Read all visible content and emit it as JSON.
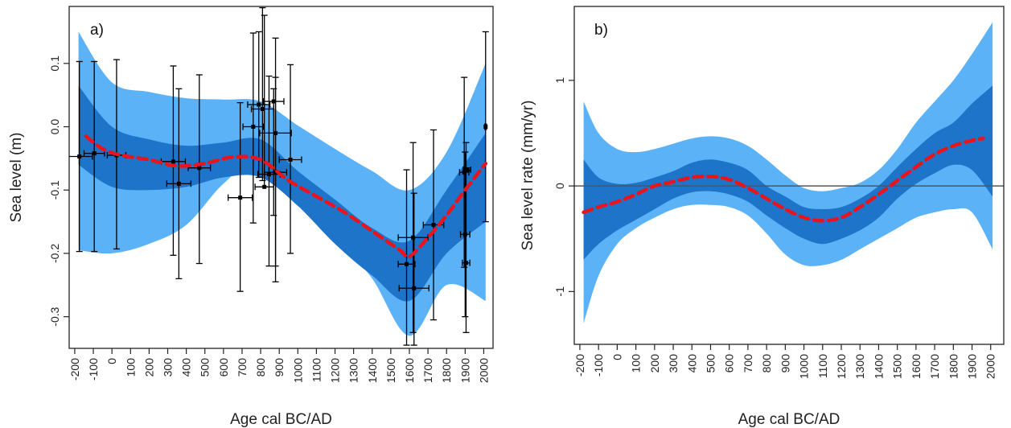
{
  "colors": {
    "outer_band": "#5bb2f7",
    "inner_band": "#1d74c9",
    "mean_line": "#e8141e",
    "data_points": "#000000",
    "zero_line": "#555555"
  },
  "chart_data": [
    {
      "type": "line",
      "panel_label": "a)",
      "xlabel": "Age cal BC/AD",
      "ylabel": "Sea level (m)",
      "xlim": [
        -230,
        2050
      ],
      "ylim": [
        -0.35,
        0.19
      ],
      "xticks": [
        -200,
        -100,
        0,
        100,
        200,
        300,
        400,
        500,
        600,
        700,
        800,
        900,
        1000,
        1100,
        1200,
        1300,
        1400,
        1500,
        1600,
        1700,
        1800,
        1900,
        2000
      ],
      "xtick_labels": [
        "-200",
        "-100",
        "0",
        "100",
        "200",
        "300",
        "400",
        "500",
        "600",
        "700",
        "800",
        "900",
        "1000",
        "1100",
        "1200",
        "1300",
        "1400",
        "1500",
        "1600",
        "1700",
        "1800",
        "1900",
        "2000"
      ],
      "yticks": [
        -0.3,
        -0.2,
        -0.1,
        0.0,
        0.1
      ],
      "ytick_labels": [
        "-0.3",
        "-0.2",
        "-0.1",
        "0.0",
        "0.1"
      ],
      "grid": false,
      "band_x": [
        -180,
        0,
        200,
        400,
        600,
        800,
        1000,
        1200,
        1400,
        1600,
        1800,
        2010
      ],
      "outer_upper": [
        0.15,
        0.07,
        0.055,
        0.045,
        0.043,
        0.04,
        0.002,
        -0.035,
        -0.07,
        -0.1,
        -0.04,
        0.1
      ],
      "outer_lower": [
        -0.195,
        -0.2,
        -0.185,
        -0.155,
        -0.09,
        -0.05,
        -0.105,
        -0.17,
        -0.24,
        -0.33,
        -0.25,
        -0.275
      ],
      "inner_upper": [
        0.065,
        0.0,
        -0.02,
        -0.03,
        -0.025,
        -0.02,
        -0.07,
        -0.115,
        -0.16,
        -0.18,
        -0.1,
        -0.01
      ],
      "inner_lower": [
        -0.06,
        -0.095,
        -0.1,
        -0.095,
        -0.08,
        -0.08,
        -0.125,
        -0.185,
        -0.235,
        -0.275,
        -0.2,
        -0.15
      ],
      "mean_x": [
        -140,
        -50,
        50,
        200,
        350,
        500,
        650,
        800,
        950,
        1100,
        1250,
        1400,
        1550,
        1600,
        1700,
        1800,
        1900,
        2010
      ],
      "mean_y": [
        -0.015,
        -0.035,
        -0.045,
        -0.052,
        -0.062,
        -0.058,
        -0.048,
        -0.052,
        -0.085,
        -0.11,
        -0.135,
        -0.165,
        -0.195,
        -0.205,
        -0.175,
        -0.14,
        -0.1,
        -0.058
      ],
      "points": [
        {
          "x": -175,
          "y": -0.047,
          "xerr": 70,
          "y_low": -0.197,
          "y_high": 0.103
        },
        {
          "x": -95,
          "y": -0.042,
          "xerr": 55,
          "y_low": -0.197,
          "y_high": 0.103
        },
        {
          "x": 25,
          "y": -0.045,
          "xerr": 50,
          "y_low": -0.193,
          "y_high": 0.106
        },
        {
          "x": 330,
          "y": -0.055,
          "xerr": 65,
          "y_low": -0.203,
          "y_high": 0.096
        },
        {
          "x": 360,
          "y": -0.09,
          "xerr": 65,
          "y_low": -0.24,
          "y_high": 0.06
        },
        {
          "x": 470,
          "y": -0.065,
          "xerr": 60,
          "y_low": -0.216,
          "y_high": 0.082
        },
        {
          "x": 690,
          "y": -0.112,
          "xerr": 65,
          "y_low": -0.26,
          "y_high": 0.038
        },
        {
          "x": 760,
          "y": 0.0,
          "xerr": 55,
          "y_low": -0.152,
          "y_high": 0.148
        },
        {
          "x": 790,
          "y": 0.035,
          "xerr": 60,
          "y_low": -0.08,
          "y_high": 0.15
        },
        {
          "x": 810,
          "y": 0.028,
          "xerr": 60,
          "y_low": -0.085,
          "y_high": 0.188
        },
        {
          "x": 820,
          "y": -0.095,
          "xerr": 50,
          "y_low": -0.095,
          "y_high": 0.176
        },
        {
          "x": 845,
          "y": -0.075,
          "xerr": 60,
          "y_low": -0.22,
          "y_high": 0.08
        },
        {
          "x": 870,
          "y": 0.04,
          "xerr": 55,
          "y_low": -0.14,
          "y_high": 0.06
        },
        {
          "x": 880,
          "y": -0.01,
          "xerr": 85,
          "y_low": -0.245,
          "y_high": 0.14
        },
        {
          "x": 880,
          "y": -0.072,
          "xerr": 60,
          "y_low": -0.22,
          "y_high": 0.078
        },
        {
          "x": 960,
          "y": -0.052,
          "xerr": 60,
          "y_low": -0.2,
          "y_high": 0.098
        },
        {
          "x": 1585,
          "y": -0.217,
          "xerr": 45,
          "y_low": -0.345,
          "y_high": -0.068
        },
        {
          "x": 1620,
          "y": -0.175,
          "xerr": 80,
          "y_low": -0.325,
          "y_high": -0.025
        },
        {
          "x": 1625,
          "y": -0.255,
          "xerr": 80,
          "y_low": -0.345,
          "y_high": -0.105
        },
        {
          "x": 1730,
          "y": -0.155,
          "xerr": 55,
          "y_low": -0.305,
          "y_high": -0.005
        },
        {
          "x": 1895,
          "y": -0.072,
          "xerr": 25,
          "y_low": -0.222,
          "y_high": 0.078
        },
        {
          "x": 1900,
          "y": -0.17,
          "xerr": 25,
          "y_low": -0.3,
          "y_high": -0.04
        },
        {
          "x": 1905,
          "y": -0.215,
          "xerr": 20,
          "y_low": -0.325,
          "y_high": -0.025
        },
        {
          "x": 1910,
          "y": -0.068,
          "xerr": 20,
          "y_low": -0.07,
          "y_high": -0.065
        },
        {
          "x": 2010,
          "y": 0.0,
          "xerr": 5,
          "y_low": -0.15,
          "y_high": 0.15
        }
      ]
    },
    {
      "type": "line",
      "panel_label": "b)",
      "xlabel": "Age cal BC/AD",
      "ylabel": "Sea level rate (mm/yr)",
      "xlim": [
        -230,
        2070
      ],
      "ylim": [
        -1.5,
        1.7
      ],
      "xticks": [
        -200,
        -100,
        0,
        100,
        200,
        300,
        400,
        500,
        600,
        700,
        800,
        900,
        1000,
        1100,
        1200,
        1300,
        1400,
        1500,
        1600,
        1700,
        1800,
        1900,
        2000
      ],
      "xtick_labels": [
        "-200",
        "-100",
        "0",
        "100",
        "200",
        "300",
        "400",
        "500",
        "600",
        "700",
        "800",
        "900",
        "1000",
        "1100",
        "1200",
        "1300",
        "1400",
        "1500",
        "1600",
        "1700",
        "1800",
        "1900",
        "2000"
      ],
      "yticks": [
        -1,
        0,
        1
      ],
      "ytick_labels": [
        "-1",
        "0",
        "1"
      ],
      "zero_line": 0,
      "grid": false,
      "band_x": [
        -180,
        -100,
        0,
        100,
        200,
        300,
        400,
        500,
        600,
        700,
        800,
        900,
        1000,
        1100,
        1200,
        1300,
        1400,
        1500,
        1600,
        1700,
        1800,
        1900,
        2010
      ],
      "outer_upper": [
        0.8,
        0.5,
        0.35,
        0.32,
        0.35,
        0.4,
        0.45,
        0.47,
        0.45,
        0.38,
        0.25,
        0.1,
        -0.02,
        -0.05,
        -0.02,
        0.03,
        0.15,
        0.35,
        0.6,
        0.8,
        1.0,
        1.25,
        1.55
      ],
      "outer_lower": [
        -1.3,
        -0.85,
        -0.55,
        -0.4,
        -0.3,
        -0.22,
        -0.18,
        -0.18,
        -0.2,
        -0.28,
        -0.45,
        -0.65,
        -0.75,
        -0.75,
        -0.7,
        -0.6,
        -0.5,
        -0.4,
        -0.3,
        -0.25,
        -0.22,
        -0.25,
        -0.6
      ],
      "inner_upper": [
        0.25,
        0.08,
        0.02,
        0.03,
        0.08,
        0.14,
        0.22,
        0.25,
        0.22,
        0.15,
        0.0,
        -0.1,
        -0.2,
        -0.22,
        -0.2,
        -0.12,
        0.0,
        0.18,
        0.35,
        0.5,
        0.6,
        0.78,
        0.95
      ],
      "inner_lower": [
        -0.7,
        -0.55,
        -0.42,
        -0.32,
        -0.22,
        -0.12,
        -0.06,
        -0.05,
        -0.08,
        -0.15,
        -0.28,
        -0.4,
        -0.5,
        -0.55,
        -0.5,
        -0.42,
        -0.3,
        -0.12,
        0.02,
        0.12,
        0.2,
        0.15,
        -0.1
      ],
      "mean_x": [
        -180,
        -100,
        0,
        100,
        200,
        300,
        400,
        500,
        600,
        700,
        800,
        900,
        1000,
        1100,
        1200,
        1300,
        1400,
        1500,
        1600,
        1700,
        1800,
        1900,
        1960
      ],
      "mean_y": [
        -0.25,
        -0.2,
        -0.15,
        -0.08,
        0.0,
        0.04,
        0.08,
        0.09,
        0.06,
        -0.02,
        -0.12,
        -0.22,
        -0.3,
        -0.33,
        -0.3,
        -0.2,
        -0.08,
        0.05,
        0.18,
        0.3,
        0.38,
        0.43,
        0.45
      ]
    }
  ]
}
